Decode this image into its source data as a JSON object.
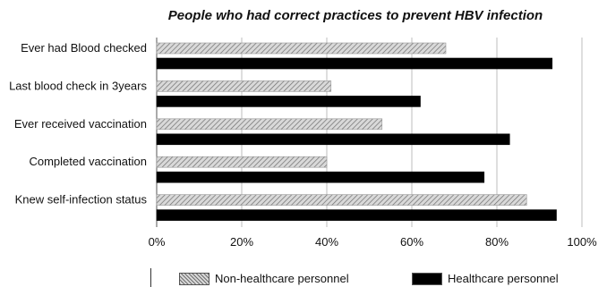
{
  "chart_data": {
    "type": "bar",
    "orientation": "horizontal",
    "title": "People who had correct practices to prevent HBV infection",
    "categories": [
      "Ever had Blood checked",
      "Last blood check in 3years",
      "Ever received vaccination",
      "Completed vaccination",
      "Knew self-infection status"
    ],
    "series": [
      {
        "name": "Non-healthcare personnel",
        "values": [
          68,
          41,
          53,
          40,
          87
        ],
        "color": "#bdbdbd",
        "pattern": "diagonal-hatch"
      },
      {
        "name": "Healthcare personnel",
        "values": [
          93,
          62,
          83,
          77,
          94
        ],
        "color": "#000000",
        "pattern": "solid"
      }
    ],
    "xlim": [
      0,
      100
    ],
    "xticks": [
      "0%",
      "20%",
      "40%",
      "60%",
      "80%",
      "100%"
    ],
    "grid": "vertical",
    "legend_position": "bottom"
  }
}
